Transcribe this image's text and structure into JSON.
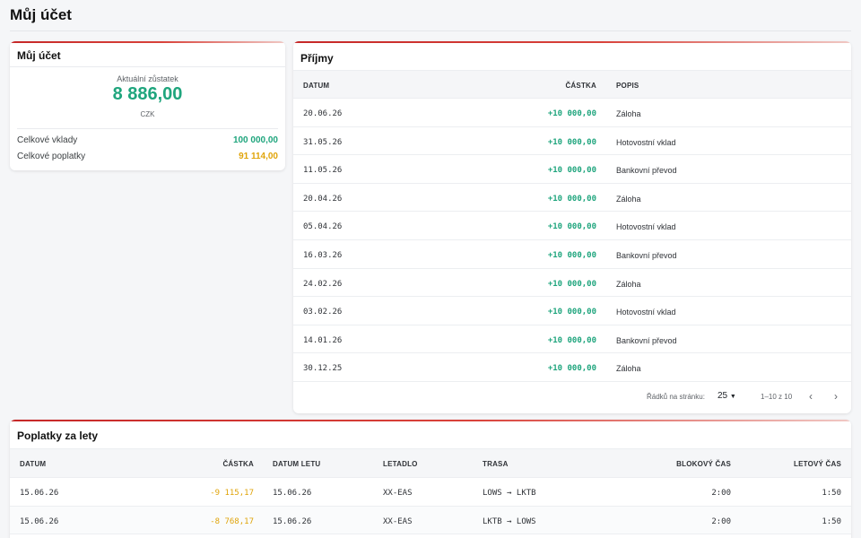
{
  "page": {
    "title": "Můj účet"
  },
  "account": {
    "title": "Můj účet",
    "balance_label": "Aktuální zůstatek",
    "balance_value": "8 886,00",
    "currency": "CZK",
    "rows": [
      {
        "label": "Celkové vklady",
        "value": "100 000,00",
        "color": "#1fa57d"
      },
      {
        "label": "Celkové poplatky",
        "value": "91 114,00",
        "color": "#e0a40a"
      }
    ]
  },
  "income": {
    "title": "Příjmy",
    "columns": [
      "DATUM",
      "ČÁSTKA",
      "POPIS"
    ],
    "rows": [
      {
        "date": "20.06.26",
        "amount": "+10 000,00",
        "desc": "Záloha"
      },
      {
        "date": "31.05.26",
        "amount": "+10 000,00",
        "desc": "Hotovostní vklad"
      },
      {
        "date": "11.05.26",
        "amount": "+10 000,00",
        "desc": "Bankovní převod"
      },
      {
        "date": "20.04.26",
        "amount": "+10 000,00",
        "desc": "Záloha"
      },
      {
        "date": "05.04.26",
        "amount": "+10 000,00",
        "desc": "Hotovostní vklad"
      },
      {
        "date": "16.03.26",
        "amount": "+10 000,00",
        "desc": "Bankovní převod"
      },
      {
        "date": "24.02.26",
        "amount": "+10 000,00",
        "desc": "Záloha"
      },
      {
        "date": "03.02.26",
        "amount": "+10 000,00",
        "desc": "Hotovostní vklad"
      },
      {
        "date": "14.01.26",
        "amount": "+10 000,00",
        "desc": "Bankovní převod"
      },
      {
        "date": "30.12.25",
        "amount": "+10 000,00",
        "desc": "Záloha"
      }
    ],
    "pagination": {
      "rows_per_page_label": "Řádků na stránku:",
      "rows_per_page_value": "25",
      "range": "1–10 z 10",
      "prev_icon": "chevron-left-icon",
      "next_icon": "chevron-right-icon"
    }
  },
  "fees": {
    "title": "Poplatky za lety",
    "columns": [
      "DATUM",
      "ČÁSTKA",
      "DATUM LETU",
      "LETADLO",
      "TRASA",
      "BLOKOVÝ ČAS",
      "LETOVÝ ČAS"
    ],
    "rows": [
      {
        "date": "15.06.26",
        "amount": "-9 115,17",
        "flight_date": "15.06.26",
        "aircraft": "XX-EAS",
        "route": "LOWS → LKTB",
        "block": "2:00",
        "flight": "1:50"
      },
      {
        "date": "15.06.26",
        "amount": "-8 768,17",
        "flight_date": "15.06.26",
        "aircraft": "XX-EAS",
        "route": "LKTB → LOWS",
        "block": "2:00",
        "flight": "1:50"
      }
    ]
  },
  "colors": {
    "accent": "#c62828",
    "positive": "#1fa57d",
    "fee": "#e0a40a"
  }
}
